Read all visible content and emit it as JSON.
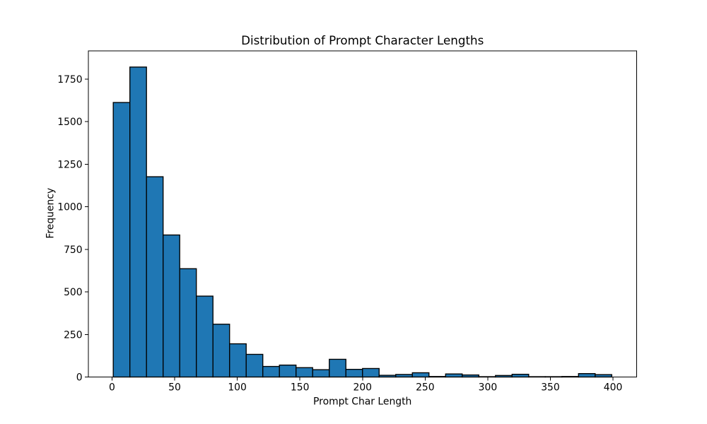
{
  "chart_data": {
    "type": "bar",
    "subtype": "histogram",
    "title": "Distribution of Prompt Character Lengths",
    "xlabel": "Prompt Char Length",
    "ylabel": "Frequency",
    "bin_start": 1.0,
    "bin_width": 13.2667,
    "counts": [
      1612,
      1820,
      1176,
      834,
      636,
      475,
      310,
      195,
      133,
      62,
      70,
      55,
      43,
      104,
      45,
      50,
      10,
      15,
      25,
      3,
      18,
      12,
      2,
      9,
      16,
      2,
      2,
      3,
      20,
      14
    ],
    "xticks": [
      0,
      50,
      100,
      150,
      200,
      250,
      300,
      350,
      400
    ],
    "yticks": [
      0,
      250,
      500,
      750,
      1000,
      1250,
      1500,
      1750
    ],
    "xlim": [
      -18.87,
      418.87
    ],
    "ylim": [
      0,
      1915
    ],
    "bar_color": "#1f77b4",
    "bar_edge_color": "#000000",
    "grid": false,
    "legend": null
  }
}
